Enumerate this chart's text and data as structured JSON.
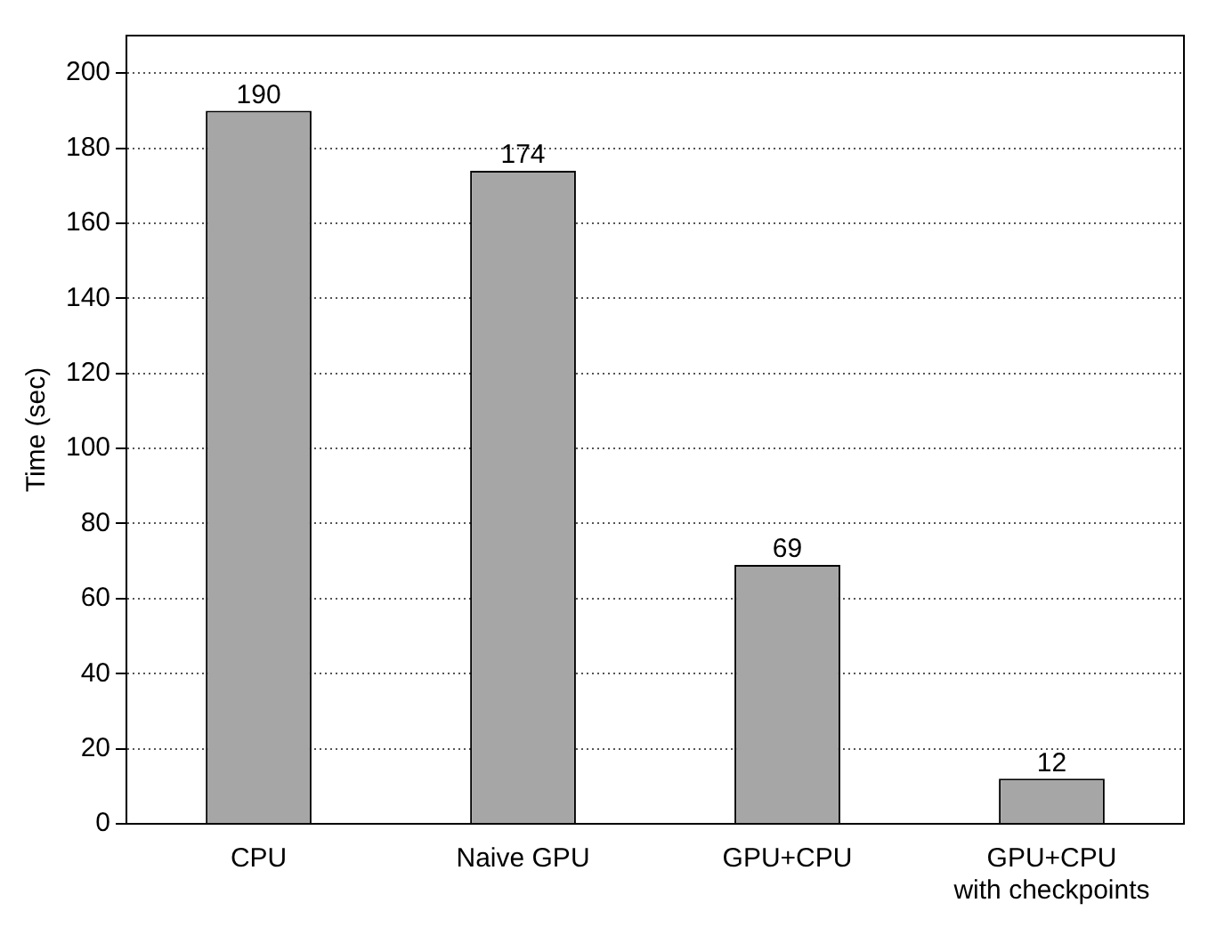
{
  "chart_data": {
    "type": "bar",
    "ylabel": "Time (sec)",
    "categories": [
      "CPU",
      "Naive GPU",
      "GPU+CPU",
      "GPU+CPU\nwith checkpoints"
    ],
    "values": [
      190,
      174,
      69,
      12
    ],
    "color": "#a6a6a6",
    "ylim": [
      0,
      210
    ],
    "yticks": [
      0,
      20,
      40,
      60,
      80,
      100,
      120,
      140,
      160,
      180,
      200
    ],
    "grid": "y",
    "data_labels": true
  }
}
